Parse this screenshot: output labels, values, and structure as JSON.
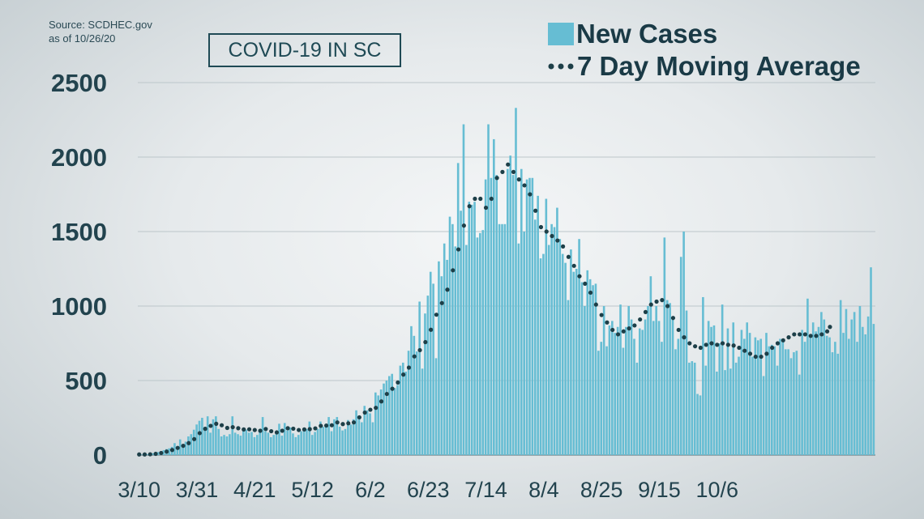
{
  "header": {
    "source_line1": "Source: SCDHEC.gov",
    "source_line2": "as of 10/26/20",
    "title": "COVID-19 IN SC"
  },
  "colors": {
    "bar": "#66bdd3",
    "average": "#1d3f48",
    "grid": "#bcc6ca",
    "text": "#22434e"
  },
  "chart_data": {
    "type": "bar",
    "title": "COVID-19 IN SC",
    "xlabel": "",
    "ylabel": "",
    "ylim": [
      0,
      2500
    ],
    "yticks": [
      0,
      500,
      1000,
      1500,
      2000,
      2500
    ],
    "grid": true,
    "legend_position": "top-right",
    "x_start_date": "3/10",
    "x_tick_labels": [
      "3/10",
      "3/31",
      "4/21",
      "5/12",
      "6/2",
      "6/23",
      "7/14",
      "8/4",
      "8/25",
      "9/15",
      "10/6"
    ],
    "x_tick_day_offsets": [
      0,
      21,
      42,
      63,
      84,
      105,
      126,
      147,
      168,
      189,
      210
    ],
    "series": [
      {
        "name": "New Cases",
        "kind": "bar",
        "values": [
          4,
          3,
          4,
          6,
          9,
          12,
          18,
          20,
          25,
          33,
          40,
          45,
          55,
          80,
          60,
          105,
          70,
          90,
          125,
          140,
          170,
          205,
          230,
          250,
          190,
          260,
          150,
          240,
          260,
          175,
          125,
          135,
          125,
          140,
          260,
          150,
          140,
          130,
          160,
          170,
          150,
          155,
          120,
          135,
          160,
          255,
          160,
          150,
          120,
          135,
          160,
          210,
          130,
          215,
          165,
          185,
          145,
          120,
          135,
          160,
          180,
          175,
          225,
          135,
          155,
          175,
          225,
          190,
          200,
          255,
          160,
          240,
          255,
          190,
          165,
          175,
          235,
          205,
          240,
          300,
          250,
          220,
          330,
          300,
          280,
          220,
          420,
          400,
          440,
          480,
          500,
          530,
          545,
          450,
          470,
          600,
          620,
          560,
          700,
          865,
          800,
          695,
          1030,
          580,
          950,
          1070,
          1230,
          1150,
          650,
          1300,
          1200,
          1420,
          1310,
          1600,
          1550,
          1400,
          1960,
          1640,
          2220,
          1410,
          1700,
          1680,
          1700,
          1460,
          1490,
          1510,
          1850,
          2220,
          1860,
          2120,
          1880,
          1550,
          1550,
          1550,
          1920,
          2010,
          1880,
          2330,
          1420,
          1920,
          1500,
          1850,
          1860,
          1860,
          1580,
          1740,
          1320,
          1350,
          1720,
          1410,
          1550,
          1530,
          1660,
          1450,
          1350,
          1290,
          1040,
          1380,
          1230,
          1250,
          1450,
          1160,
          1000,
          1240,
          1180,
          1140,
          1150,
          700,
          760,
          1000,
          730,
          870,
          900,
          820,
          860,
          1010,
          720,
          860,
          1000,
          910,
          780,
          620,
          850,
          840,
          910,
          1000,
          1200,
          900,
          1000,
          900,
          760,
          1460,
          1040,
          1020,
          930,
          710,
          780,
          1330,
          1500,
          970,
          620,
          630,
          620,
          410,
          400,
          1060,
          600,
          900,
          860,
          870,
          560,
          750,
          1010,
          570,
          850,
          580,
          890,
          620,
          660,
          840,
          780,
          890,
          820,
          660,
          790,
          770,
          780,
          530,
          820,
          730,
          740,
          730,
          600,
          780,
          760,
          710,
          710,
          650,
          690,
          700,
          540,
          840,
          760,
          1050,
          800,
          890,
          830,
          860,
          960,
          910,
          800,
          790,
          690,
          760,
          680,
          1040,
          820,
          980,
          780,
          910,
          960,
          760,
          1000,
          860,
          810,
          930,
          1260,
          880
        ],
        "values_note_removed": null
      },
      {
        "name": "7 Day Moving Average",
        "kind": "dotted-line",
        "values": [
          4,
          4,
          4,
          5,
          5,
          6,
          8,
          11,
          14,
          18,
          23,
          28,
          34,
          43,
          48,
          57,
          62,
          70,
          80,
          92,
          107,
          128,
          147,
          166,
          176,
          196,
          196,
          200,
          210,
          212,
          200,
          197,
          182,
          174,
          187,
          186,
          180,
          177,
          172,
          175,
          173,
          175,
          168,
          164,
          163,
          178,
          175,
          168,
          160,
          155,
          152,
          162,
          163,
          179,
          180,
          186,
          177,
          172,
          168,
          170,
          172,
          165,
          174,
          173,
          179,
          186,
          196,
          196,
          198,
          205,
          200,
          210,
          219,
          210,
          208,
          210,
          213,
          213,
          219,
          240,
          253,
          258,
          285,
          297,
          304,
          303,
          317,
          346,
          360,
          383,
          410,
          430,
          445,
          465,
          487,
          514,
          540,
          560,
          587,
          630,
          662,
          673,
          704,
          720,
          758,
          788,
          841,
          918,
          942,
          970,
          1020,
          1065,
          1110,
          1170,
          1240,
          1290,
          1380,
          1460,
          1540,
          1605,
          1670,
          1710,
          1720,
          1720,
          1720,
          1690,
          1660,
          1680,
          1720,
          1800,
          1860,
          1900,
          1900,
          1930,
          1950,
          1920,
          1900,
          1880,
          1850,
          1830,
          1810,
          1780,
          1750,
          1690,
          1640,
          1580,
          1530,
          1510,
          1500,
          1480,
          1470,
          1460,
          1440,
          1420,
          1400,
          1370,
          1330,
          1300,
          1270,
          1230,
          1200,
          1170,
          1150,
          1120,
          1090,
          1050,
          1010,
          980,
          940,
          920,
          890,
          860,
          840,
          820,
          810,
          820,
          830,
          840,
          850,
          860,
          870,
          890,
          910,
          940,
          960,
          990,
          1010,
          1020,
          1030,
          1050,
          1040,
          1020,
          1000,
          960,
          920,
          880,
          840,
          810,
          790,
          770,
          750,
          740,
          730,
          720,
          720,
          730,
          740,
          750,
          750,
          740,
          740,
          740,
          750,
          740,
          740,
          740,
          735,
          730,
          720,
          710,
          700,
          690,
          680,
          670,
          660,
          660,
          660,
          670,
          680,
          700,
          720,
          740,
          750,
          760,
          770,
          780,
          790,
          800,
          810,
          810,
          810,
          810,
          810,
          810,
          800,
          800,
          800,
          800,
          810,
          820,
          830,
          860
        ]
      }
    ]
  }
}
